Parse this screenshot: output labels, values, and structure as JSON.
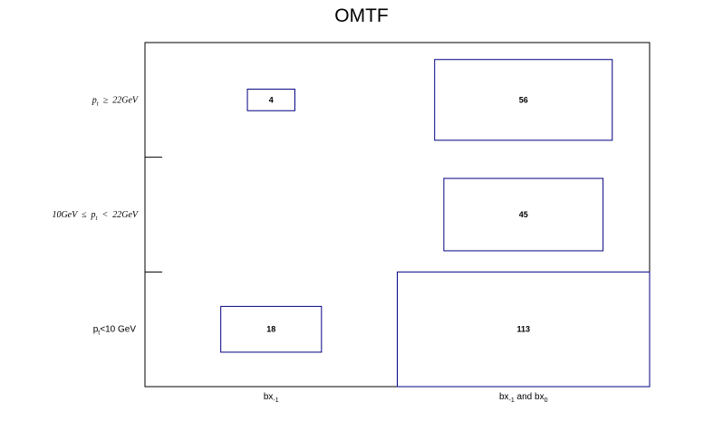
{
  "chart_data": {
    "type": "box",
    "title": "OMTF",
    "x_categories": [
      {
        "base": "bx",
        "sub": "-1",
        "rest": "",
        "sub2": ""
      },
      {
        "base": "bx",
        "sub": "-1",
        "rest": " and bx",
        "sub2": "0"
      }
    ],
    "y_categories": [
      {
        "parts": [
          {
            "t": "p",
            "style": "italic"
          },
          {
            "t": "t",
            "style": "sub-italic"
          },
          {
            "t": "  <10 GeV",
            "style": "plain"
          }
        ],
        "label_text": "pₜ<10 GeV"
      },
      {
        "label_text": "10GeV  ≤  pₜ  <  22GeV"
      },
      {
        "label_text": "pₜ  ≥  22GeV"
      }
    ],
    "cells": [
      {
        "x": 0,
        "y": 2,
        "value": 4
      },
      {
        "x": 1,
        "y": 2,
        "value": 56
      },
      {
        "x": 1,
        "y": 1,
        "value": 45
      },
      {
        "x": 0,
        "y": 0,
        "value": 18
      },
      {
        "x": 1,
        "y": 0,
        "value": 113
      }
    ],
    "max_value": 113,
    "colors": {
      "box": "#000080",
      "frame": "#000000"
    },
    "grid": false,
    "legend": "none"
  }
}
